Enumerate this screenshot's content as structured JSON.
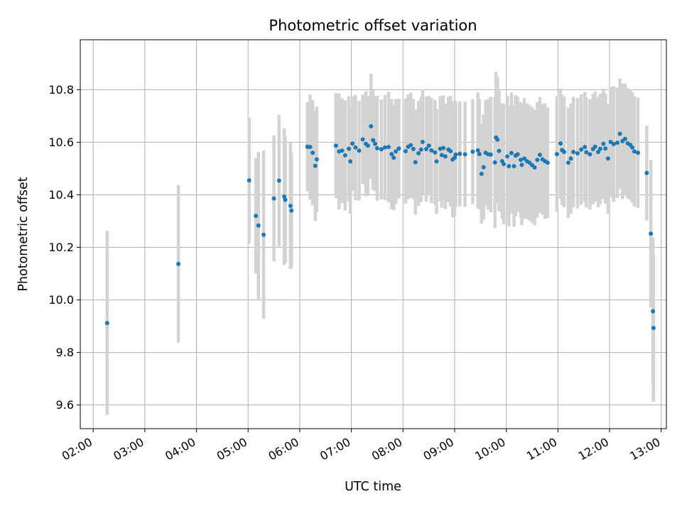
{
  "chart_data": {
    "type": "scatter",
    "title": "Photometric offset variation",
    "xlabel": "UTC time",
    "ylabel": "Photometric offset",
    "x_unit": "hours (UTC)",
    "xlim": [
      1.75,
      13.1
    ],
    "ylim": [
      9.51,
      10.99
    ],
    "x_ticks": [
      2,
      3,
      4,
      5,
      6,
      7,
      8,
      9,
      10,
      11,
      12,
      13
    ],
    "x_tick_labels": [
      "02:00",
      "03:00",
      "04:00",
      "05:00",
      "06:00",
      "07:00",
      "08:00",
      "09:00",
      "10:00",
      "11:00",
      "12:00",
      "13:00"
    ],
    "y_ticks": [
      9.6,
      9.8,
      10.0,
      10.2,
      10.4,
      10.6,
      10.8
    ],
    "y_tick_labels": [
      "9.6",
      "9.8",
      "10.0",
      "10.2",
      "10.4",
      "10.6",
      "10.8"
    ],
    "grid": true,
    "marker_color": "#1f77b4",
    "errorbar_color": "#d3d3d3",
    "points": [
      [
        2.27,
        9.912,
        0.35
      ],
      [
        3.65,
        10.137,
        0.3
      ],
      [
        5.02,
        10.455,
        0.24
      ],
      [
        5.15,
        10.32,
        0.22
      ],
      [
        5.2,
        10.283,
        0.28
      ],
      [
        5.3,
        10.248,
        0.32
      ],
      [
        5.5,
        10.386,
        0.24
      ],
      [
        5.6,
        10.454,
        0.25
      ],
      [
        5.7,
        10.393,
        0.26
      ],
      [
        5.72,
        10.381,
        0.24
      ],
      [
        5.82,
        10.358,
        0.24
      ],
      [
        5.84,
        10.34,
        0.22
      ],
      [
        6.15,
        10.583,
        0.17
      ],
      [
        6.2,
        10.582,
        0.2
      ],
      [
        6.25,
        10.56,
        0.2
      ],
      [
        6.3,
        10.51,
        0.21
      ],
      [
        6.33,
        10.535,
        0.2
      ],
      [
        6.7,
        10.587,
        0.2
      ],
      [
        6.76,
        10.565,
        0.22
      ],
      [
        6.82,
        10.568,
        0.2
      ],
      [
        6.88,
        10.55,
        0.21
      ],
      [
        6.95,
        10.575,
        0.2
      ],
      [
        6.98,
        10.527,
        0.2
      ],
      [
        7.02,
        10.595,
        0.18
      ],
      [
        7.08,
        10.58,
        0.2
      ],
      [
        7.15,
        10.568,
        0.19
      ],
      [
        7.22,
        10.611,
        0.17
      ],
      [
        7.28,
        10.594,
        0.2
      ],
      [
        7.32,
        10.587,
        0.19
      ],
      [
        7.38,
        10.661,
        0.2
      ],
      [
        7.42,
        10.608,
        0.19
      ],
      [
        7.46,
        10.594,
        0.18
      ],
      [
        7.5,
        10.577,
        0.2
      ],
      [
        7.58,
        10.573,
        0.19
      ],
      [
        7.65,
        10.58,
        0.2
      ],
      [
        7.72,
        10.582,
        0.21
      ],
      [
        7.78,
        10.555,
        0.21
      ],
      [
        7.82,
        10.541,
        0.2
      ],
      [
        7.86,
        10.565,
        0.2
      ],
      [
        7.92,
        10.576,
        0.19
      ],
      [
        8.05,
        10.566,
        0.2
      ],
      [
        8.1,
        10.583,
        0.2
      ],
      [
        8.15,
        10.589,
        0.2
      ],
      [
        8.2,
        10.574,
        0.19
      ],
      [
        8.24,
        10.524,
        0.2
      ],
      [
        8.3,
        10.558,
        0.2
      ],
      [
        8.35,
        10.572,
        0.2
      ],
      [
        8.38,
        10.601,
        0.2
      ],
      [
        8.45,
        10.574,
        0.2
      ],
      [
        8.5,
        10.587,
        0.19
      ],
      [
        8.55,
        10.569,
        0.2
      ],
      [
        8.62,
        10.561,
        0.2
      ],
      [
        8.65,
        10.527,
        0.2
      ],
      [
        8.72,
        10.575,
        0.2
      ],
      [
        8.75,
        10.551,
        0.2
      ],
      [
        8.78,
        10.578,
        0.2
      ],
      [
        8.82,
        10.546,
        0.2
      ],
      [
        8.88,
        10.572,
        0.2
      ],
      [
        8.92,
        10.566,
        0.21
      ],
      [
        8.96,
        10.534,
        0.22
      ],
      [
        9.0,
        10.541,
        0.22
      ],
      [
        9.02,
        10.553,
        0.2
      ],
      [
        9.1,
        10.556,
        0.2
      ],
      [
        9.2,
        10.554,
        0.2
      ],
      [
        9.35,
        10.564,
        0.2
      ],
      [
        9.45,
        10.569,
        0.22
      ],
      [
        9.48,
        10.555,
        0.21
      ],
      [
        9.52,
        10.48,
        0.19
      ],
      [
        9.56,
        10.505,
        0.2
      ],
      [
        9.6,
        10.56,
        0.2
      ],
      [
        9.65,
        10.554,
        0.21
      ],
      [
        9.7,
        10.553,
        0.22
      ],
      [
        9.78,
        10.523,
        0.25
      ],
      [
        9.8,
        10.618,
        0.25
      ],
      [
        9.83,
        10.61,
        0.24
      ],
      [
        9.86,
        10.567,
        0.23
      ],
      [
        9.92,
        10.528,
        0.22
      ],
      [
        9.95,
        10.517,
        0.23
      ],
      [
        10.02,
        10.546,
        0.23
      ],
      [
        10.05,
        10.509,
        0.23
      ],
      [
        10.1,
        10.559,
        0.23
      ],
      [
        10.15,
        10.509,
        0.23
      ],
      [
        10.18,
        10.549,
        0.23
      ],
      [
        10.22,
        10.554,
        0.22
      ],
      [
        10.28,
        10.533,
        0.22
      ],
      [
        10.3,
        10.514,
        0.23
      ],
      [
        10.35,
        10.538,
        0.23
      ],
      [
        10.4,
        10.528,
        0.22
      ],
      [
        10.45,
        10.522,
        0.22
      ],
      [
        10.5,
        10.513,
        0.22
      ],
      [
        10.55,
        10.504,
        0.22
      ],
      [
        10.6,
        10.533,
        0.22
      ],
      [
        10.65,
        10.552,
        0.22
      ],
      [
        10.7,
        10.535,
        0.21
      ],
      [
        10.75,
        10.528,
        0.22
      ],
      [
        10.8,
        10.522,
        0.21
      ],
      [
        10.98,
        10.555,
        0.22
      ],
      [
        11.05,
        10.595,
        0.21
      ],
      [
        11.08,
        10.57,
        0.21
      ],
      [
        11.12,
        10.563,
        0.21
      ],
      [
        11.2,
        10.522,
        0.21
      ],
      [
        11.25,
        10.538,
        0.21
      ],
      [
        11.3,
        10.563,
        0.21
      ],
      [
        11.38,
        10.558,
        0.21
      ],
      [
        11.45,
        10.572,
        0.21
      ],
      [
        11.52,
        10.582,
        0.21
      ],
      [
        11.55,
        10.562,
        0.21
      ],
      [
        11.62,
        10.554,
        0.21
      ],
      [
        11.68,
        10.574,
        0.21
      ],
      [
        11.72,
        10.583,
        0.21
      ],
      [
        11.78,
        10.563,
        0.21
      ],
      [
        11.82,
        10.575,
        0.21
      ],
      [
        11.88,
        10.594,
        0.21
      ],
      [
        11.92,
        10.576,
        0.21
      ],
      [
        11.97,
        10.538,
        0.21
      ],
      [
        12.02,
        10.601,
        0.21
      ],
      [
        12.08,
        10.593,
        0.22
      ],
      [
        12.15,
        10.598,
        0.21
      ],
      [
        12.2,
        10.632,
        0.21
      ],
      [
        12.25,
        10.604,
        0.22
      ],
      [
        12.3,
        10.613,
        0.21
      ],
      [
        12.35,
        10.596,
        0.21
      ],
      [
        12.4,
        10.59,
        0.21
      ],
      [
        12.44,
        10.58,
        0.21
      ],
      [
        12.48,
        10.565,
        0.21
      ],
      [
        12.55,
        10.56,
        0.21
      ],
      [
        12.72,
        10.483,
        0.18
      ],
      [
        12.8,
        10.252,
        0.28
      ],
      [
        12.84,
        9.957,
        0.28
      ],
      [
        12.85,
        9.893,
        0.28
      ]
    ]
  }
}
